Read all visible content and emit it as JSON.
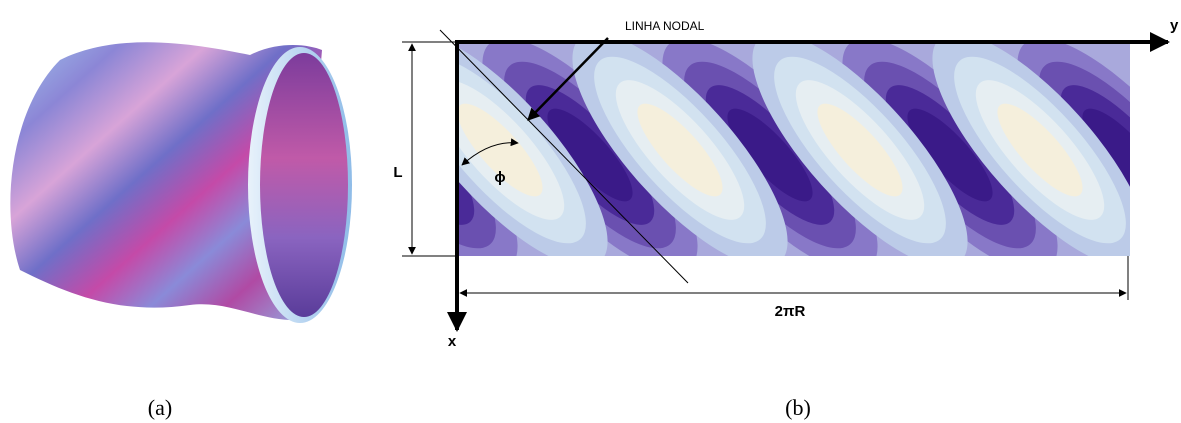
{
  "figure_a": {
    "caption": "(a)"
  },
  "figure_b": {
    "caption": "(b)",
    "annotation": "LINHA NODAL",
    "axis_y": "y",
    "axis_x": "x",
    "length_label": "L",
    "angle_label": "ϕ",
    "width_label": "2πR"
  }
}
